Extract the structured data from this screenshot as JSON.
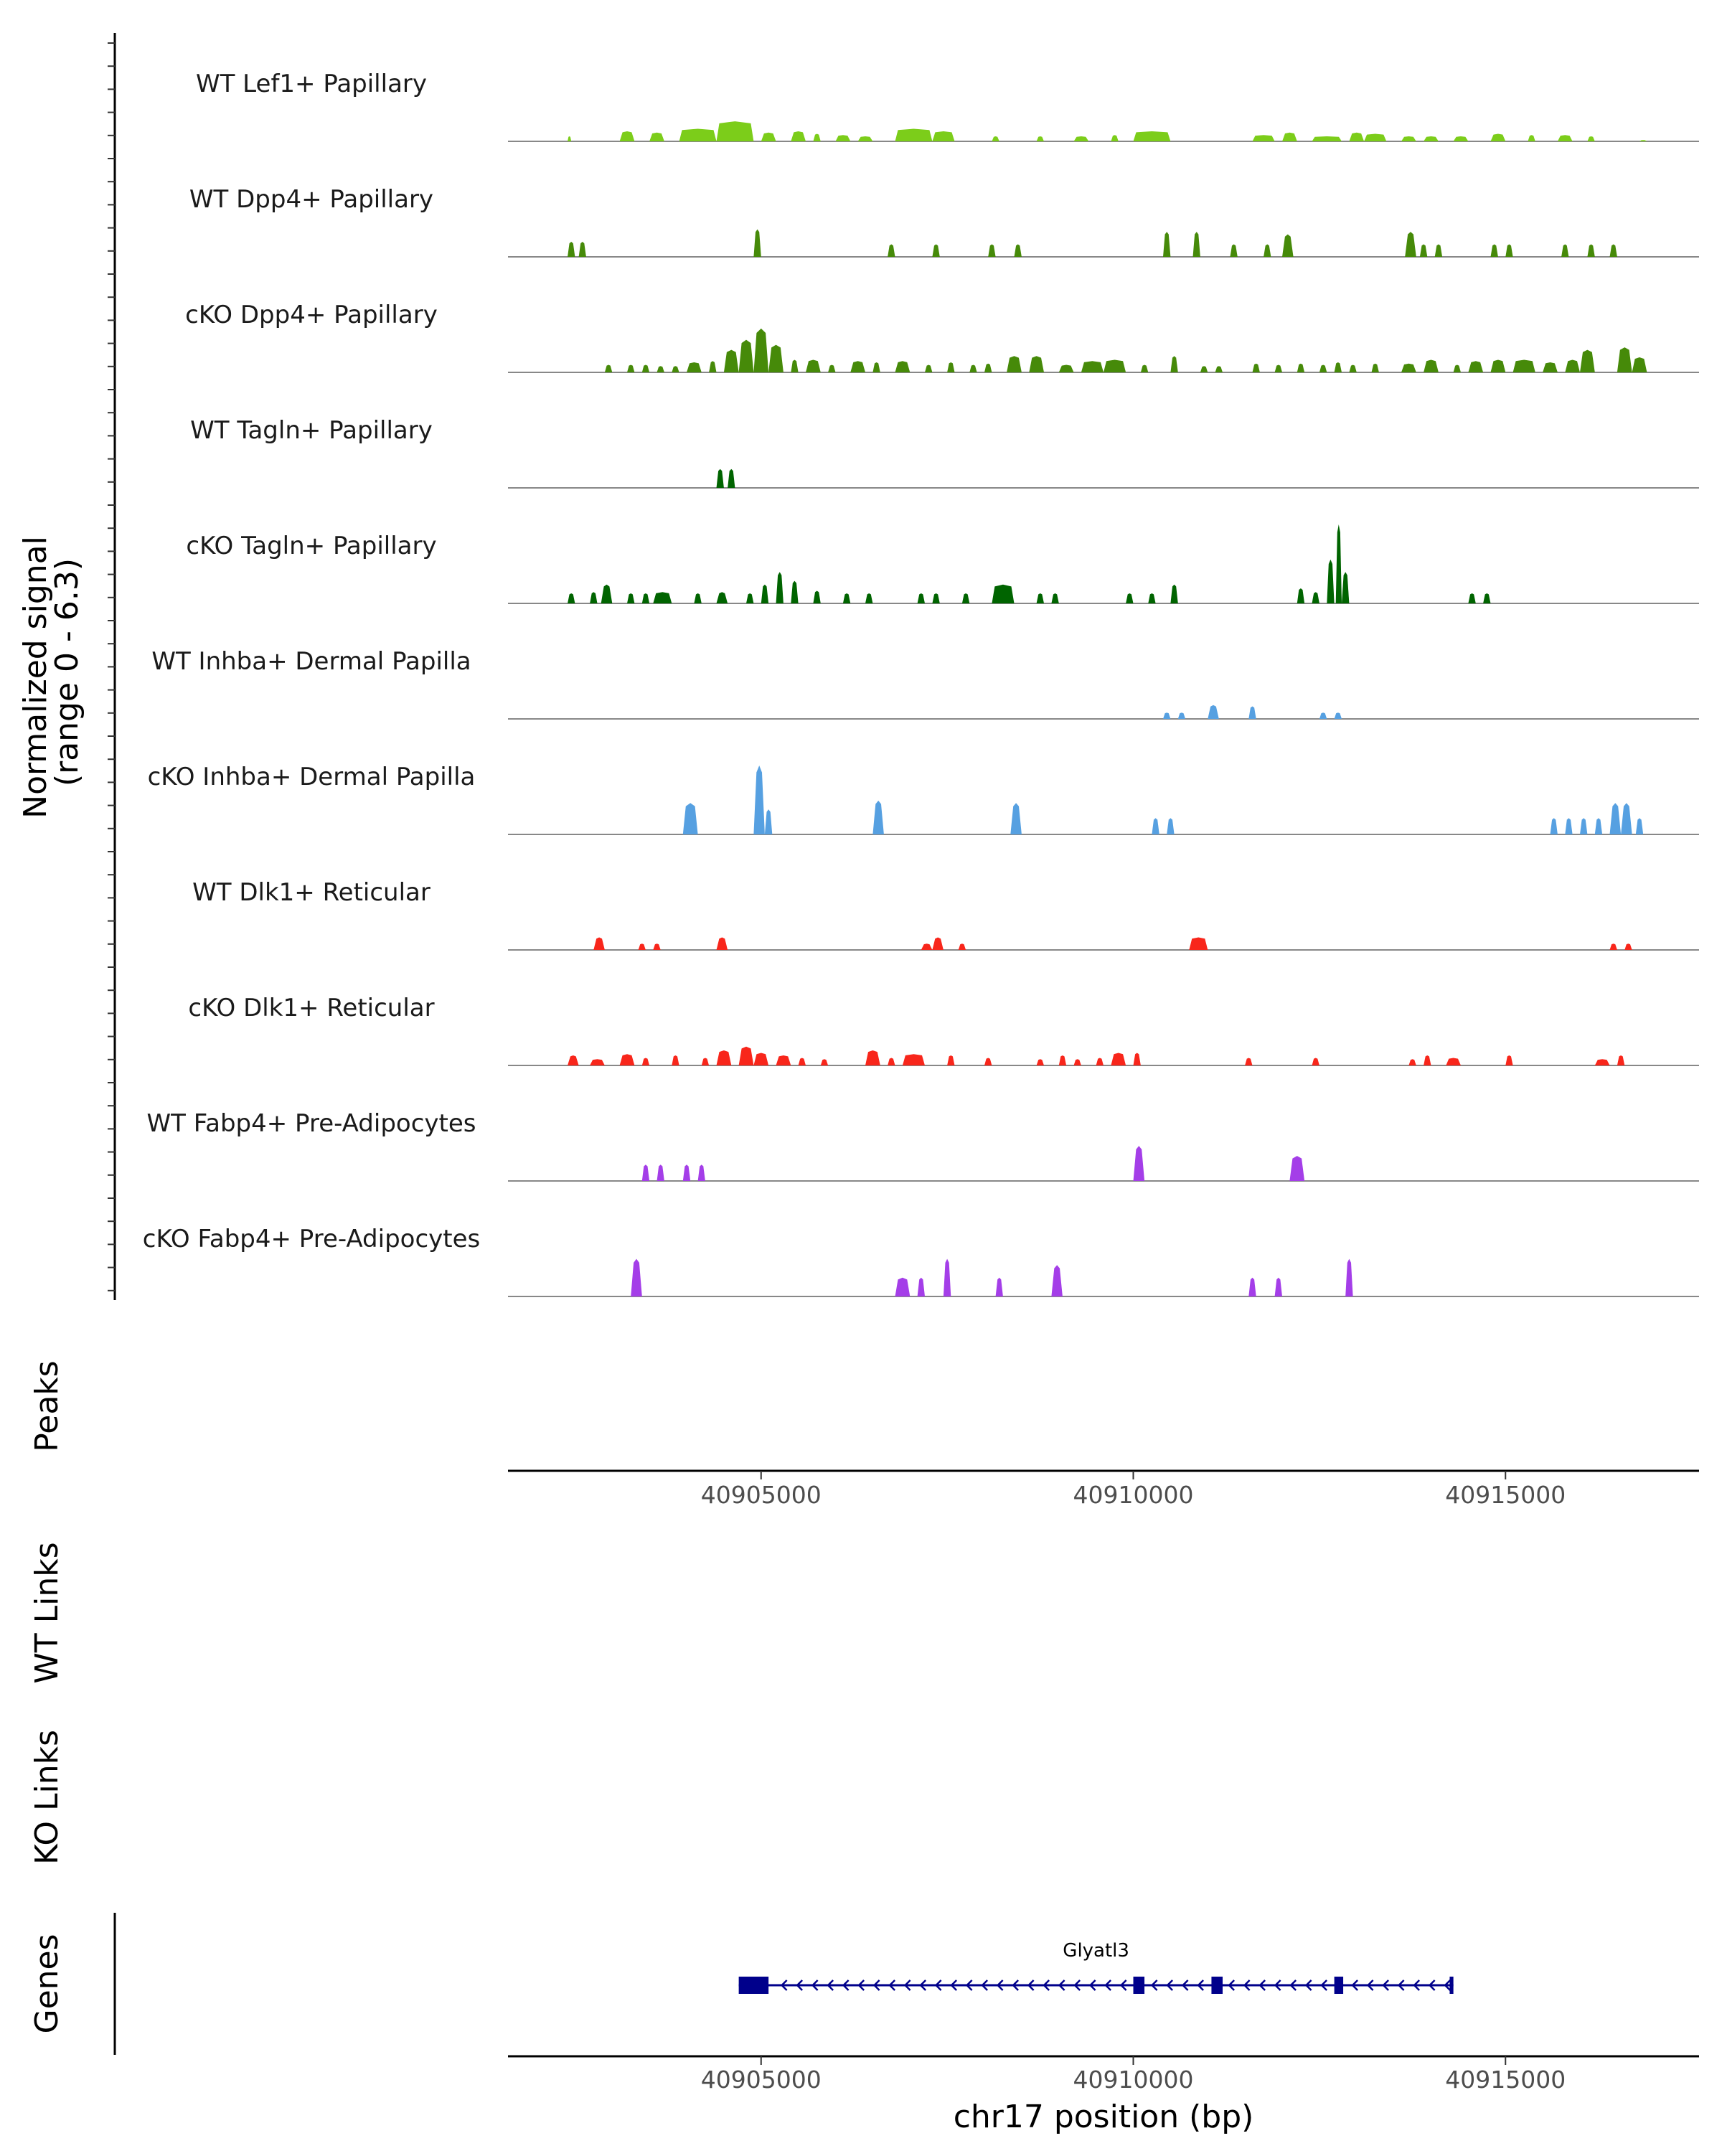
{
  "chart_data": {
    "type": "area",
    "genome_browser": true,
    "chromosome": "chr17",
    "region": [
      40901600,
      40917600
    ],
    "ylabel": "Normalized signal\n(range 0 - 6.3)",
    "ylabel_lines": [
      "Normalized signal",
      "(range 0 - 6.3)"
    ],
    "y_range": [
      0,
      6.3
    ],
    "xlabel": "chr17 position (bp)",
    "x_ticks": [
      40905000,
      40910000,
      40915000
    ],
    "tracks": [
      {
        "name": "WT Lef1+ Papillary",
        "color": "#7CCD1A",
        "peaks": [
          [
            40902400,
            40902450,
            0.4
          ],
          [
            40903100,
            40903300,
            0.8
          ],
          [
            40903500,
            40903700,
            0.7
          ],
          [
            40903900,
            40904400,
            1.0
          ],
          [
            40904400,
            40904900,
            1.6
          ],
          [
            40905000,
            40905200,
            0.7
          ],
          [
            40905400,
            40905600,
            0.8
          ],
          [
            40905700,
            40905800,
            0.6
          ],
          [
            40906000,
            40906200,
            0.5
          ],
          [
            40906300,
            40906500,
            0.4
          ],
          [
            40906800,
            40907300,
            1.0
          ],
          [
            40907300,
            40907600,
            0.8
          ],
          [
            40908100,
            40908200,
            0.4
          ],
          [
            40908700,
            40908800,
            0.4
          ],
          [
            40909200,
            40909400,
            0.4
          ],
          [
            40909700,
            40909800,
            0.5
          ],
          [
            40910000,
            40910500,
            0.8
          ],
          [
            40911600,
            40911900,
            0.5
          ],
          [
            40912000,
            40912200,
            0.7
          ],
          [
            40912400,
            40912800,
            0.4
          ],
          [
            40912900,
            40913100,
            0.7
          ],
          [
            40913100,
            40913400,
            0.6
          ],
          [
            40913600,
            40913800,
            0.4
          ],
          [
            40913900,
            40914100,
            0.4
          ],
          [
            40914300,
            40914500,
            0.4
          ],
          [
            40914800,
            40915000,
            0.6
          ],
          [
            40915300,
            40915400,
            0.5
          ],
          [
            40915700,
            40915900,
            0.5
          ],
          [
            40916100,
            40916200,
            0.4
          ],
          [
            40916800,
            40916900,
            0.1
          ]
        ]
      },
      {
        "name": "WT Dpp4+ Papillary",
        "color": "#468A09",
        "peaks": [
          [
            40902400,
            40902500,
            1.2
          ],
          [
            40902550,
            40902650,
            1.2
          ],
          [
            40904900,
            40905000,
            2.2
          ],
          [
            40906700,
            40906800,
            1.0
          ],
          [
            40907300,
            40907400,
            1.0
          ],
          [
            40908050,
            40908150,
            1.0
          ],
          [
            40908400,
            40908500,
            1.0
          ],
          [
            40910400,
            40910500,
            2.0
          ],
          [
            40910800,
            40910900,
            2.0
          ],
          [
            40911300,
            40911400,
            1.0
          ],
          [
            40911750,
            40911850,
            1.0
          ],
          [
            40912000,
            40912150,
            1.8
          ],
          [
            40913650,
            40913800,
            2.0
          ],
          [
            40913850,
            40913950,
            1.0
          ],
          [
            40914050,
            40914150,
            1.0
          ],
          [
            40914800,
            40914900,
            1.0
          ],
          [
            40915000,
            40915100,
            1.0
          ],
          [
            40915750,
            40915850,
            1.0
          ],
          [
            40916100,
            40916200,
            1.0
          ],
          [
            40916400,
            40916500,
            1.0
          ]
        ]
      },
      {
        "name": "cKO Dpp4+ Papillary",
        "color": "#468A09",
        "peaks": [
          [
            40902900,
            40903000,
            0.6
          ],
          [
            40903200,
            40903300,
            0.6
          ],
          [
            40903400,
            40903500,
            0.6
          ],
          [
            40903600,
            40903700,
            0.5
          ],
          [
            40903800,
            40903900,
            0.5
          ],
          [
            40904000,
            40904200,
            0.8
          ],
          [
            40904300,
            40904400,
            0.9
          ],
          [
            40904500,
            40904700,
            1.8
          ],
          [
            40904700,
            40904900,
            2.6
          ],
          [
            40904900,
            40905100,
            3.5
          ],
          [
            40905100,
            40905300,
            2.2
          ],
          [
            40905400,
            40905500,
            1.0
          ],
          [
            40905600,
            40905800,
            1.0
          ],
          [
            40905900,
            40906000,
            0.6
          ],
          [
            40906200,
            40906400,
            0.9
          ],
          [
            40906500,
            40906600,
            0.8
          ],
          [
            40906800,
            40907000,
            0.9
          ],
          [
            40907200,
            40907300,
            0.6
          ],
          [
            40907500,
            40907600,
            0.8
          ],
          [
            40907800,
            40907900,
            0.6
          ],
          [
            40908000,
            40908100,
            0.7
          ],
          [
            40908300,
            40908500,
            1.3
          ],
          [
            40908600,
            40908800,
            1.3
          ],
          [
            40909000,
            40909200,
            0.6
          ],
          [
            40909300,
            40909600,
            0.9
          ],
          [
            40909600,
            40909900,
            1.0
          ],
          [
            40910100,
            40910200,
            0.6
          ],
          [
            40910500,
            40910600,
            1.3
          ],
          [
            40910900,
            40911000,
            0.5
          ],
          [
            40911100,
            40911200,
            0.5
          ],
          [
            40911600,
            40911700,
            0.7
          ],
          [
            40911900,
            40912000,
            0.6
          ],
          [
            40912200,
            40912300,
            0.7
          ],
          [
            40912500,
            40912600,
            0.6
          ],
          [
            40912700,
            40912800,
            0.8
          ],
          [
            40912900,
            40913000,
            0.6
          ],
          [
            40913200,
            40913300,
            0.7
          ],
          [
            40913600,
            40913800,
            0.7
          ],
          [
            40913900,
            40914100,
            1.0
          ],
          [
            40914300,
            40914400,
            0.6
          ],
          [
            40914500,
            40914700,
            0.9
          ],
          [
            40914800,
            40915000,
            1.0
          ],
          [
            40915100,
            40915400,
            1.0
          ],
          [
            40915500,
            40915700,
            0.8
          ],
          [
            40915800,
            40916000,
            1.0
          ],
          [
            40916000,
            40916200,
            1.8
          ],
          [
            40916500,
            40916700,
            2.0
          ],
          [
            40916700,
            40916900,
            1.2
          ]
        ]
      },
      {
        "name": "WT Tagln+ Papillary",
        "color": "#006400",
        "peaks": [
          [
            40904400,
            40904500,
            1.5
          ],
          [
            40904550,
            40904650,
            1.5
          ]
        ]
      },
      {
        "name": "cKO Tagln+ Papillary",
        "color": "#006400",
        "peaks": [
          [
            40902400,
            40902500,
            0.8
          ],
          [
            40902700,
            40902800,
            0.9
          ],
          [
            40902850,
            40903000,
            1.5
          ],
          [
            40903200,
            40903300,
            0.8
          ],
          [
            40903400,
            40903500,
            0.8
          ],
          [
            40903550,
            40903800,
            0.9
          ],
          [
            40904100,
            40904200,
            0.8
          ],
          [
            40904400,
            40904550,
            0.9
          ],
          [
            40904800,
            40904900,
            0.8
          ],
          [
            40905000,
            40905100,
            1.5
          ],
          [
            40905200,
            40905300,
            2.5
          ],
          [
            40905400,
            40905500,
            1.8
          ],
          [
            40905700,
            40905800,
            1.0
          ],
          [
            40906100,
            40906200,
            0.8
          ],
          [
            40906400,
            40906500,
            0.8
          ],
          [
            40907100,
            40907200,
            0.8
          ],
          [
            40907300,
            40907400,
            0.8
          ],
          [
            40907700,
            40907800,
            0.8
          ],
          [
            40908100,
            40908400,
            1.5
          ],
          [
            40908700,
            40908800,
            0.8
          ],
          [
            40908900,
            40909000,
            0.8
          ],
          [
            40909900,
            40910000,
            0.8
          ],
          [
            40910200,
            40910300,
            0.8
          ],
          [
            40910500,
            40910600,
            1.5
          ],
          [
            40912200,
            40912300,
            1.2
          ],
          [
            40912400,
            40912500,
            0.9
          ],
          [
            40912600,
            40912700,
            3.5
          ],
          [
            40912720,
            40912800,
            6.3
          ],
          [
            40912800,
            40912900,
            2.5
          ],
          [
            40914500,
            40914600,
            0.8
          ],
          [
            40914700,
            40914800,
            0.8
          ]
        ]
      },
      {
        "name": "WT Inhba+ Dermal Papilla",
        "color": "#56A0E1",
        "peaks": [
          [
            40910400,
            40910500,
            0.5
          ],
          [
            40910600,
            40910700,
            0.5
          ],
          [
            40911000,
            40911150,
            1.1
          ],
          [
            40911550,
            40911650,
            1.0
          ],
          [
            40912500,
            40912600,
            0.5
          ],
          [
            40912700,
            40912800,
            0.5
          ]
        ]
      },
      {
        "name": "cKO Inhba+ Dermal Papilla",
        "color": "#56A0E1",
        "peaks": [
          [
            40903950,
            40904150,
            2.5
          ],
          [
            40904900,
            40905050,
            5.5
          ],
          [
            40905050,
            40905150,
            2.0
          ],
          [
            40906500,
            40906650,
            2.7
          ],
          [
            40908350,
            40908500,
            2.5
          ],
          [
            40910250,
            40910350,
            1.3
          ],
          [
            40910450,
            40910550,
            1.3
          ],
          [
            40915600,
            40915700,
            1.3
          ],
          [
            40915800,
            40915900,
            1.3
          ],
          [
            40916000,
            40916100,
            1.3
          ],
          [
            40916200,
            40916300,
            1.3
          ],
          [
            40916400,
            40916550,
            2.5
          ],
          [
            40916550,
            40916700,
            2.5
          ],
          [
            40916750,
            40916850,
            1.3
          ]
        ]
      },
      {
        "name": "WT Dlk1+ Reticular",
        "color": "#F8261B",
        "peaks": [
          [
            40902750,
            40902900,
            1.0
          ],
          [
            40903350,
            40903450,
            0.5
          ],
          [
            40903550,
            40903650,
            0.5
          ],
          [
            40904400,
            40904550,
            1.0
          ],
          [
            40907150,
            40907300,
            0.5
          ],
          [
            40907300,
            40907450,
            1.0
          ],
          [
            40907650,
            40907750,
            0.5
          ],
          [
            40910750,
            40911000,
            1.0
          ],
          [
            40916400,
            40916500,
            0.5
          ],
          [
            40916600,
            40916700,
            0.5
          ]
        ]
      },
      {
        "name": "cKO Dlk1+ Reticular",
        "color": "#F8261B",
        "peaks": [
          [
            40902400,
            40902550,
            0.8
          ],
          [
            40902700,
            40902900,
            0.5
          ],
          [
            40903100,
            40903300,
            0.9
          ],
          [
            40903400,
            40903500,
            0.6
          ],
          [
            40903800,
            40903900,
            0.8
          ],
          [
            40904200,
            40904300,
            0.6
          ],
          [
            40904400,
            40904600,
            1.2
          ],
          [
            40904700,
            40904900,
            1.5
          ],
          [
            40904900,
            40905100,
            1.0
          ],
          [
            40905200,
            40905400,
            0.8
          ],
          [
            40905500,
            40905600,
            0.6
          ],
          [
            40905800,
            40905900,
            0.5
          ],
          [
            40906400,
            40906600,
            1.2
          ],
          [
            40906700,
            40906800,
            0.6
          ],
          [
            40906900,
            40907200,
            0.9
          ],
          [
            40907500,
            40907600,
            0.8
          ],
          [
            40908000,
            40908100,
            0.6
          ],
          [
            40908700,
            40908800,
            0.5
          ],
          [
            40909000,
            40909100,
            0.8
          ],
          [
            40909200,
            40909300,
            0.5
          ],
          [
            40909500,
            40909600,
            0.6
          ],
          [
            40909700,
            40909900,
            1.0
          ],
          [
            40910000,
            40910100,
            1.0
          ],
          [
            40911500,
            40911600,
            0.6
          ],
          [
            40912400,
            40912500,
            0.6
          ],
          [
            40913700,
            40913800,
            0.5
          ],
          [
            40913900,
            40914000,
            0.8
          ],
          [
            40914200,
            40914400,
            0.6
          ],
          [
            40915000,
            40915100,
            0.8
          ],
          [
            40916200,
            40916400,
            0.5
          ],
          [
            40916500,
            40916600,
            0.8
          ]
        ]
      },
      {
        "name": "WT Fabp4+ Pre-Adipocytes",
        "color": "#A43EE8",
        "peaks": [
          [
            40903400,
            40903500,
            1.3
          ],
          [
            40903600,
            40903700,
            1.3
          ],
          [
            40903950,
            40904050,
            1.3
          ],
          [
            40904150,
            40904250,
            1.3
          ],
          [
            40910000,
            40910150,
            2.8
          ],
          [
            40912100,
            40912300,
            2.0
          ]
        ]
      },
      {
        "name": "cKO Fabp4+ Pre-Adipocytes",
        "color": "#A43EE8",
        "peaks": [
          [
            40903250,
            40903400,
            3.0
          ],
          [
            40906800,
            40907000,
            1.5
          ],
          [
            40907100,
            40907200,
            1.5
          ],
          [
            40907450,
            40907550,
            3.0
          ],
          [
            40908150,
            40908250,
            1.5
          ],
          [
            40908900,
            40909050,
            2.5
          ],
          [
            40911550,
            40911650,
            1.5
          ],
          [
            40911900,
            40912000,
            1.5
          ],
          [
            40912850,
            40912950,
            3.0
          ]
        ]
      }
    ],
    "panels": {
      "peaks_label": "Peaks",
      "wt_links_label": "WT Links",
      "ko_links_label": "KO Links",
      "genes_label": "Genes"
    },
    "gene": {
      "name": "Glyatl3",
      "start": 40904700,
      "end": 40914300,
      "strand": "-",
      "color": "#00008B",
      "exons": [
        [
          40904700,
          40905100
        ],
        [
          40910000,
          40910150
        ],
        [
          40911050,
          40911200
        ],
        [
          40912700,
          40912820
        ],
        [
          40914250,
          40914300
        ]
      ]
    }
  }
}
